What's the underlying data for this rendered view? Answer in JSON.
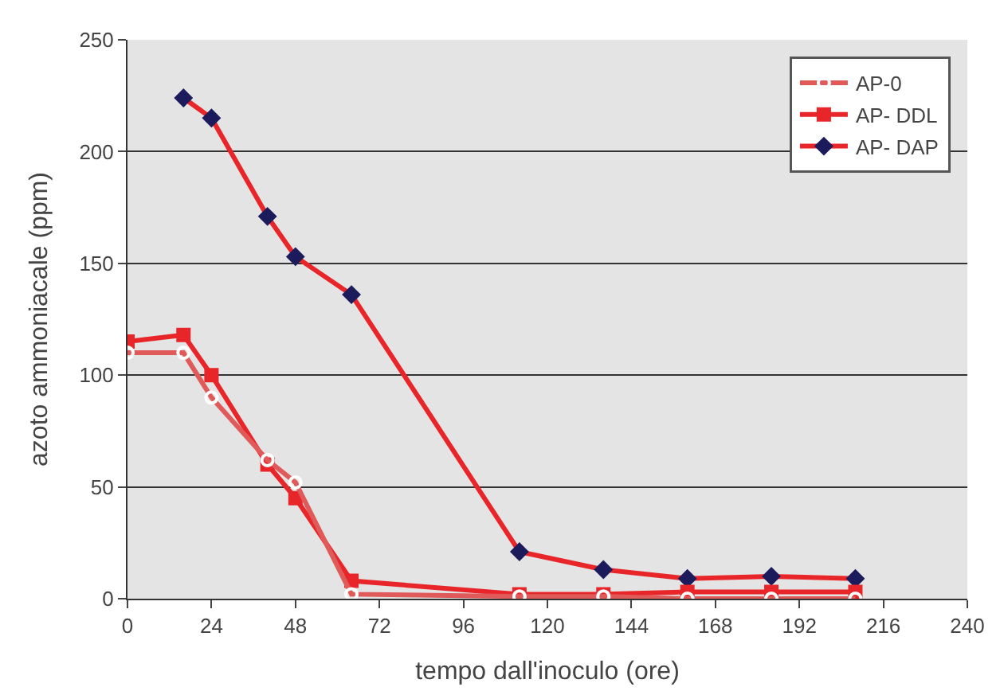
{
  "chart_data": {
    "type": "line",
    "xlabel": "tempo dall'inoculo (ore)",
    "ylabel": "azoto ammoniacale (ppm)",
    "x": [
      0,
      16,
      24,
      40,
      48,
      64,
      112,
      136,
      160,
      184,
      208
    ],
    "series": [
      {
        "name": "AP-0",
        "color": "#e05a5a",
        "marker": "circle",
        "values": [
          110,
          110,
          90,
          62,
          52,
          2,
          1,
          1,
          0,
          0,
          0
        ]
      },
      {
        "name": "AP- DDL",
        "color": "#e8262a",
        "marker": "square",
        "values": [
          115,
          118,
          100,
          60,
          45,
          8,
          2,
          2,
          3,
          3,
          3
        ]
      },
      {
        "name": "AP- DAP",
        "color": "#1c1c5c",
        "marker": "diamond",
        "values": [
          null,
          224,
          215,
          171,
          153,
          136,
          21,
          13,
          9,
          10,
          9
        ]
      }
    ],
    "xlim": [
      0,
      240
    ],
    "xticks": [
      0,
      24,
      48,
      72,
      96,
      120,
      144,
      168,
      192,
      216,
      240
    ],
    "ylim": [
      0,
      250
    ],
    "yticks": [
      0,
      50,
      100,
      150,
      200,
      250
    ],
    "grid": "y",
    "legend": "top right"
  }
}
